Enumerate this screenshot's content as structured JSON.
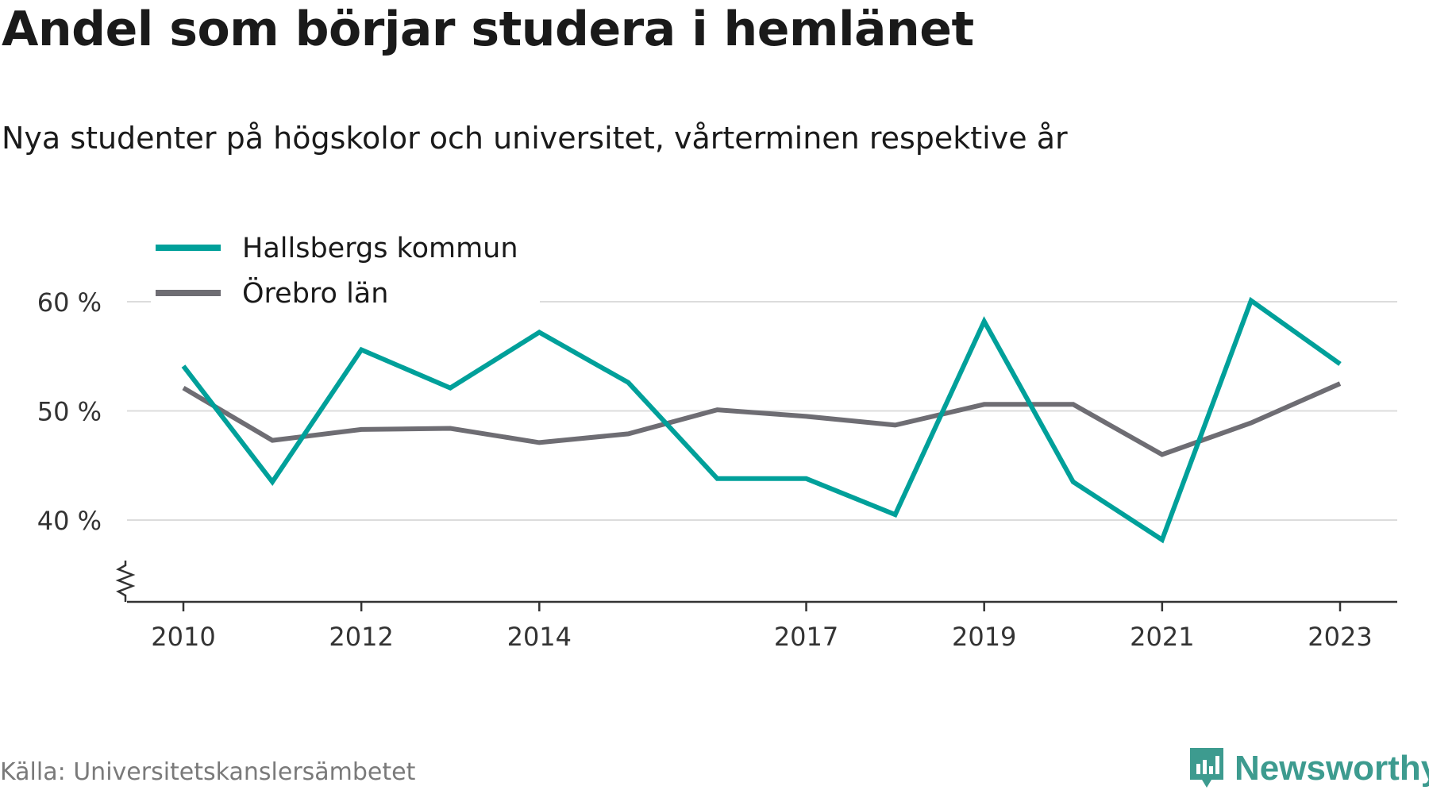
{
  "title": "Andel som börjar studera i hemlänet",
  "subtitle": "Nya studenter på högskolor och universitet, vårterminen respektive år",
  "source": "Källa: Universitetskanslersämbetet",
  "brand": "Newsworthy",
  "colors": {
    "hallsberg": "#00a09a",
    "orebro": "#6e6d73",
    "grid": "#dcdcdc",
    "axis": "#333333",
    "brand": "#3d9b8f"
  },
  "chart_data": {
    "type": "line",
    "title": "Andel som börjar studera i hemlänet",
    "subtitle": "Nya studenter på högskolor och universitet, vårterminen respektive år",
    "x": [
      2010,
      2011,
      2012,
      2013,
      2014,
      2015,
      2016,
      2017,
      2018,
      2019,
      2020,
      2021,
      2022,
      2023
    ],
    "x_tick_labels": [
      "2010",
      "2012",
      "2014",
      "2017",
      "2019",
      "2021",
      "2023"
    ],
    "y_ticks": [
      40,
      50,
      60
    ],
    "y_tick_labels": [
      "40 %",
      "50 %",
      "60 %"
    ],
    "ylim": [
      32.5,
      60
    ],
    "y_axis_break": true,
    "grid": true,
    "legend_position": "top-left",
    "series": [
      {
        "name": "Hallsbergs kommun",
        "color": "#00a09a",
        "values": [
          54.1,
          43.5,
          55.6,
          52.1,
          57.2,
          52.6,
          43.8,
          43.8,
          40.5,
          58.2,
          43.5,
          38.2,
          60.1,
          54.3
        ]
      },
      {
        "name": "Örebro län",
        "color": "#6e6d73",
        "values": [
          52.1,
          47.3,
          48.3,
          48.4,
          47.1,
          47.9,
          50.1,
          49.5,
          48.7,
          50.6,
          50.6,
          46.0,
          48.9,
          52.5
        ]
      }
    ]
  }
}
